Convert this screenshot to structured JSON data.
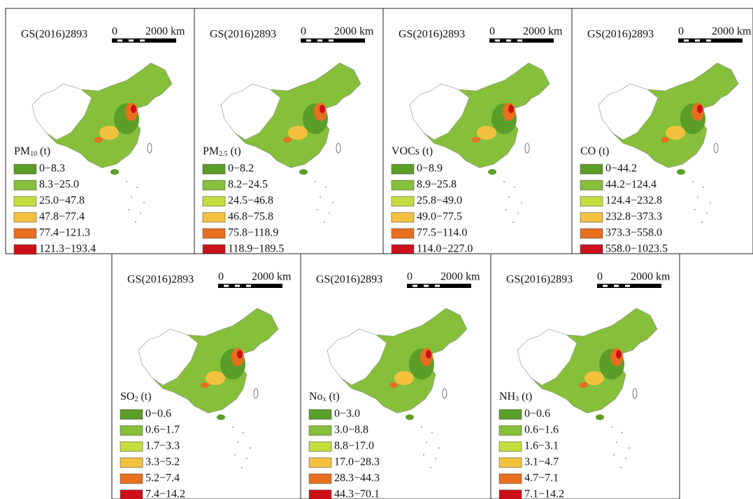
{
  "class_colors": [
    "#5a9e28",
    "#86bf3a",
    "#c5dc3d",
    "#f4c13e",
    "#e86f1f",
    "#cc1019"
  ],
  "panels": [
    {
      "code": "GS(2016)2893",
      "scale_start": "0",
      "scale_end": "2000 km",
      "legend_title": {
        "main": "PM",
        "sub": "10",
        "unit": "(t)"
      },
      "classes": [
        "0−8.3",
        "8.3−25.0",
        "25.0−47.8",
        "47.8−77.4",
        "77.4−121.3",
        "121.3−193.4"
      ]
    },
    {
      "code": "GS(2016)2893",
      "scale_start": "0",
      "scale_end": "2000 km",
      "legend_title": {
        "main": "PM",
        "sub": "2.5",
        "unit": "(t)"
      },
      "classes": [
        "0−8.2",
        "8.2−24.5",
        "24.5−46.8",
        "46.8−75.8",
        "75.8−118.9",
        "118.9−189.5"
      ]
    },
    {
      "code": "GS(2016)2893",
      "scale_start": "0",
      "scale_end": "2000 km",
      "legend_title": {
        "main": "VOCs",
        "unit": "(t)"
      },
      "classes": [
        "0−8.9",
        "8.9−25.8",
        "25.8−49.0",
        "49.0−77.5",
        "77.5−114.0",
        "114.0−227.0"
      ]
    },
    {
      "code": "GS(2016)2893",
      "scale_start": "0",
      "scale_end": "2000 km",
      "legend_title": {
        "main": "CO",
        "unit": "(t)"
      },
      "classes": [
        "0−44.2",
        "44.2−124.4",
        "124.4−232.8",
        "232.8−373.3",
        "373.3−558.0",
        "558.0−1023.5"
      ]
    },
    {
      "code": "GS(2016)2893",
      "scale_start": "0",
      "scale_end": "2000 km",
      "legend_title": {
        "main": "SO",
        "sub": "2",
        "unit": "(t)"
      },
      "classes": [
        "0−0.6",
        "0.6−1.7",
        "1.7−3.3",
        "3.3−5.2",
        "5.2−7.4",
        "7.4−14.2"
      ]
    },
    {
      "code": "GS(2016)2893",
      "scale_start": "0",
      "scale_end": "2000 km",
      "legend_title": {
        "main": "No",
        "sub": "x",
        "unit": "(t)"
      },
      "classes": [
        "0−3.0",
        "3.0−8.8",
        "8.8−17.0",
        "17.0−28.3",
        "28.3−44.3",
        "44.3−70.1"
      ]
    },
    {
      "code": "GS(2016)2893",
      "scale_start": "0",
      "scale_end": "2000 km",
      "legend_title": {
        "main": "NH",
        "sub": "3",
        "unit": "(t)"
      },
      "classes": [
        "0−0.6",
        "0.6−1.6",
        "1.6−3.1",
        "3.1−4.7",
        "4.7−7.1",
        "7.1−14.2"
      ]
    }
  ]
}
